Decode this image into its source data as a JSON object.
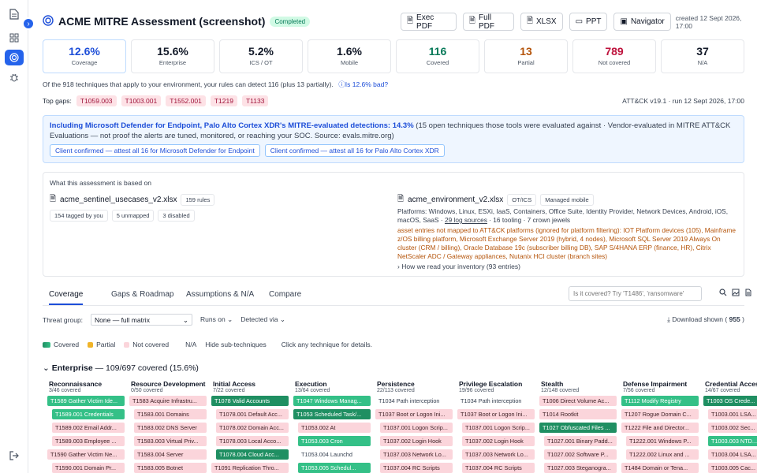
{
  "sidebar": {
    "icons": [
      "document-icon",
      "grid-icon",
      "target-icon",
      "bug-icon",
      "logout-icon"
    ]
  },
  "header": {
    "title": "ACME MITRE Assessment (screenshot)",
    "status": "Completed",
    "buttons": [
      "Exec PDF",
      "Full PDF",
      "XLSX",
      "PPT",
      "Navigator"
    ],
    "created": "created 12 Sept 2026, 17:00"
  },
  "stats": [
    {
      "value": "12.6%",
      "label": "Coverage"
    },
    {
      "value": "15.6%",
      "label": "Enterprise"
    },
    {
      "value": "5.2%",
      "label": "ICS / OT"
    },
    {
      "value": "1.6%",
      "label": "Mobile"
    },
    {
      "value": "116",
      "label": "Covered"
    },
    {
      "value": "13",
      "label": "Partial"
    },
    {
      "value": "789",
      "label": "Not covered"
    },
    {
      "value": "37",
      "label": "N/A"
    }
  ],
  "summary": {
    "text": "Of the 918 techniques that apply to your environment, your rules can detect 116 (plus 13 partially).",
    "why": "Is 12.6% bad?"
  },
  "gaps": {
    "label": "Top gaps:",
    "items": [
      "T1059.003",
      "T1003.001",
      "T1552.001",
      "T1219",
      "T1133"
    ],
    "attck": "ATT&CK v19.1 · run 12 Sept 2026, 17:00"
  },
  "info": {
    "headline": "Including Microsoft Defender for Endpoint, Palo Alto Cortex XDR's MITRE-evaluated detections: 14.3%",
    "body": " (15 open techniques those tools were evaluated against · Vendor-evaluated in MITRE ATT&CK Evaluations — not proof the alerts are tuned, monitored, or reaching your SOC. Source: evals.mitre.org)",
    "buttons": [
      "Client confirmed — attest all 16 for Microsoft Defender for Endpoint",
      "Client confirmed — attest all 16 for Palo Alto Cortex XDR"
    ]
  },
  "basis": {
    "label": "What this assessment is based on",
    "rules_file": "acme_sentinel_usecases_v2.xlsx",
    "rules_count": "159 rules",
    "rule_pills": [
      "154 tagged by you",
      "5 unmapped",
      "3 disabled"
    ],
    "env_file": "acme_environment_v2.xlsx",
    "env_pills": [
      "OT/ICS",
      "Managed mobile"
    ],
    "platforms": "Platforms: Windows, Linux, ESXi, IaaS, Containers, Office Suite, Identity Provider, Network Devices, Android, iOS, macOS, SaaS · ",
    "log_sources": "29 log sources",
    "platforms_tail": " · 16 tooling · 7 crown jewels",
    "unmapped": "asset entries not mapped to ATT&CK platforms (ignored for platform filtering): IOT Platform devices (105), Mainframe z/OS billing platform, Microsoft Exchange Server 2019 (hybrid, 4 nodes), Microsoft SQL Server 2019 Always On cluster (CRM / billing), Oracle Database 19c (subscriber billing DB), SAP S/4HANA ERP (finance, HR), Citrix NetScaler ADC / Gateway appliances, Nutanix HCI cluster (branch sites)",
    "inventory_link": "How we read your inventory (93 entries)"
  },
  "tabs": [
    "Coverage",
    "Gaps & Roadmap",
    "Assumptions & N/A",
    "Compare"
  ],
  "search_placeholder": "Is it covered? Try 'T1486', 'ransomware'",
  "filters": {
    "threat_group_label": "Threat group:",
    "threat_group_value": "None — full matrix",
    "runs_on": "Runs on",
    "detected_via": "Detected via",
    "download": "Download shown (",
    "download_count": "955",
    "download_tail": ")"
  },
  "legend": {
    "covered": "Covered",
    "partial": "Partial",
    "not_covered": "Not covered",
    "na": "N/A",
    "hide": "Hide sub-techniques",
    "hint": "Click any technique for details.",
    "colors": {
      "covered": "#1f8f62",
      "partial": "#f0b429",
      "not_covered": "#fbd5db"
    }
  },
  "enterprise": {
    "label": "Enterprise",
    "summary": " — 109/697 covered (15.6%)"
  },
  "matrix": [
    {
      "name": "Reconnaissance",
      "count": "3/46 covered",
      "cells": [
        {
          "t": "T1589 Gather Victim Ide...",
          "s": "covered-light",
          "sub": false
        },
        {
          "t": "T1589.001 Credentials",
          "s": "covered-light",
          "sub": true
        },
        {
          "t": "T1589.002 Email Addr...",
          "s": "not",
          "sub": true
        },
        {
          "t": "T1589.003 Employee ...",
          "s": "not",
          "sub": true
        },
        {
          "t": "T1590 Gather Victim Ne...",
          "s": "not",
          "sub": false
        },
        {
          "t": "T1590.001 Domain Pr...",
          "s": "not",
          "sub": true
        }
      ]
    },
    {
      "name": "Resource Development",
      "count": "0/50 covered",
      "cells": [
        {
          "t": "T1583 Acquire Infrastru...",
          "s": "not",
          "sub": false
        },
        {
          "t": "T1583.001 Domains",
          "s": "not",
          "sub": true
        },
        {
          "t": "T1583.002 DNS Server",
          "s": "not",
          "sub": true
        },
        {
          "t": "T1583.003 Virtual Priv...",
          "s": "not",
          "sub": true
        },
        {
          "t": "T1583.004 Server",
          "s": "not",
          "sub": true
        },
        {
          "t": "T1583.005 Botnet",
          "s": "not",
          "sub": true
        }
      ]
    },
    {
      "name": "Initial Access",
      "count": "7/22 covered",
      "cells": [
        {
          "t": "T1078 Valid Accounts",
          "s": "covered",
          "sub": false
        },
        {
          "t": "T1078.001 Default Acc...",
          "s": "not",
          "sub": true
        },
        {
          "t": "T1078.002 Domain Acc...",
          "s": "not",
          "sub": true
        },
        {
          "t": "T1078.003 Local Acco...",
          "s": "not",
          "sub": true
        },
        {
          "t": "T1078.004 Cloud Acc...",
          "s": "covered",
          "sub": true
        },
        {
          "t": "T1091 Replication Thro...",
          "s": "not",
          "sub": false
        }
      ]
    },
    {
      "name": "Execution",
      "count": "13/64 covered",
      "cells": [
        {
          "t": "T1047 Windows Manag...",
          "s": "covered-light",
          "sub": false
        },
        {
          "t": "T1053 Scheduled Task/...",
          "s": "covered",
          "sub": false
        },
        {
          "t": "T1053.002 At",
          "s": "not",
          "sub": true
        },
        {
          "t": "T1053.003 Cron",
          "s": "covered-light",
          "sub": true
        },
        {
          "t": "T1053.004 Launchd",
          "s": "nodata",
          "sub": true
        },
        {
          "t": "T1053.005 Schedul...",
          "s": "covered-light",
          "sub": true
        }
      ]
    },
    {
      "name": "Persistence",
      "count": "22/113 covered",
      "cells": [
        {
          "t": "T1034 Path interception",
          "s": "nodata",
          "sub": false
        },
        {
          "t": "T1037 Boot or Logon Ini...",
          "s": "not",
          "sub": false
        },
        {
          "t": "T1037.001 Logon Scrip...",
          "s": "not",
          "sub": true
        },
        {
          "t": "T1037.002 Login Hook",
          "s": "not",
          "sub": true
        },
        {
          "t": "T1037.003 Network Lo...",
          "s": "not",
          "sub": true
        },
        {
          "t": "T1037.004 RC Scripts",
          "s": "not",
          "sub": true
        }
      ]
    },
    {
      "name": "Privilege Escalation",
      "count": "19/96 covered",
      "cells": [
        {
          "t": "T1034 Path interception",
          "s": "nodata",
          "sub": false
        },
        {
          "t": "T1037 Boot or Logon Ini...",
          "s": "not",
          "sub": false
        },
        {
          "t": "T1037.001 Logon Scrip...",
          "s": "not",
          "sub": true
        },
        {
          "t": "T1037.002 Login Hook",
          "s": "not",
          "sub": true
        },
        {
          "t": "T1037.003 Network Lo...",
          "s": "not",
          "sub": true
        },
        {
          "t": "T1037.004 RC Scripts",
          "s": "not",
          "sub": true
        }
      ]
    },
    {
      "name": "Stealth",
      "count": "12/148 covered",
      "cells": [
        {
          "t": "T1006 Direct Volume Ac...",
          "s": "not",
          "sub": false
        },
        {
          "t": "T1014 Rootkit",
          "s": "not",
          "sub": false
        },
        {
          "t": "T1027 Obfuscated Files ...",
          "s": "covered",
          "sub": false
        },
        {
          "t": "T1027.001 Binary Padd...",
          "s": "not",
          "sub": true
        },
        {
          "t": "T1027.002 Software P...",
          "s": "not",
          "sub": true
        },
        {
          "t": "T1027.003 Steganogra...",
          "s": "not",
          "sub": true
        }
      ]
    },
    {
      "name": "Defense Impairment",
      "count": "7/56 covered",
      "cells": [
        {
          "t": "T1112 Modify Registry",
          "s": "covered-light",
          "sub": false
        },
        {
          "t": "T1207 Rogue Domain C...",
          "s": "not",
          "sub": false
        },
        {
          "t": "T1222 File and Director...",
          "s": "not",
          "sub": false
        },
        {
          "t": "T1222.001 Windows P...",
          "s": "not",
          "sub": true
        },
        {
          "t": "T1222.002 Linux and ...",
          "s": "not",
          "sub": true
        },
        {
          "t": "T1484 Domain or Tena...",
          "s": "not",
          "sub": false
        }
      ]
    },
    {
      "name": "Credential Access",
      "count": "14/67 covered",
      "cells": [
        {
          "t": "T1003 OS Crede...",
          "s": "covered",
          "sub": false
        },
        {
          "t": "T1003.001 LSA...",
          "s": "not",
          "sub": true
        },
        {
          "t": "T1003.002 Sec...",
          "s": "not",
          "sub": true
        },
        {
          "t": "T1003.003 NTD...",
          "s": "covered-light",
          "sub": true
        },
        {
          "t": "T1003.004 LSA...",
          "s": "not",
          "sub": true
        },
        {
          "t": "T1003.005 Cac...",
          "s": "not",
          "sub": true
        }
      ]
    }
  ]
}
